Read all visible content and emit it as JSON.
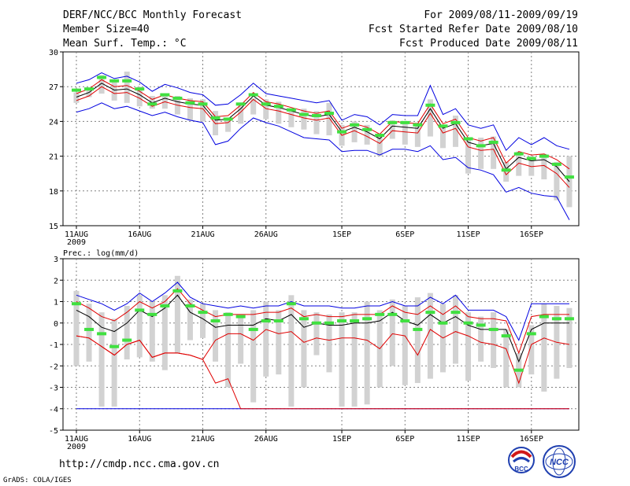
{
  "header": {
    "title": "DERF/NCC/BCC Monthly Forecast",
    "member_size": "Member Size=40",
    "variable": "Mean Surf. Temp.: °C",
    "period": "For 2009/08/11-2009/09/19",
    "fcst_started": "Fcst Started Refer Date 2009/08/10",
    "fcst_produced": "Fcst Produced Date 2009/08/11"
  },
  "footer": {
    "url": "http://cmdp.ncc.cma.gov.cn",
    "grads": "GrADS: COLA/IGES",
    "logo_bcc": "BCC",
    "logo_ncc": "NCC"
  },
  "colors": {
    "ensemble_mean": "#000000",
    "upper_lower": "#0000e0",
    "std_range": "#e00000",
    "box": "#d2d2d2",
    "observed_marker": "#40e040",
    "grid": "#808080"
  },
  "chart_data": [
    {
      "type": "line",
      "title": "Mean Surf. Temp.: °C",
      "ylim": [
        15,
        30
      ],
      "yticks": [
        "15",
        "18",
        "21",
        "24",
        "27",
        "30"
      ],
      "xticks": [
        "11AUG",
        "16AUG",
        "21AUG",
        "26AUG",
        "1SEP",
        "6SEP",
        "11SEP",
        "16SEP"
      ],
      "xtick_days": [
        0,
        5,
        10,
        15,
        21,
        26,
        31,
        36
      ],
      "year_label": "2009",
      "days": 40,
      "series": [
        {
          "name": "mean",
          "values": [
            26.1,
            26.5,
            27.3,
            26.7,
            26.8,
            26.3,
            25.6,
            26.0,
            25.7,
            25.5,
            25.4,
            24.1,
            24.2,
            25.1,
            26.2,
            25.4,
            25.2,
            24.9,
            24.6,
            24.4,
            24.6,
            23.1,
            23.5,
            23.1,
            22.5,
            23.6,
            23.5,
            23.4,
            25.1,
            23.4,
            23.8,
            22.2,
            21.9,
            22.1,
            19.9,
            20.9,
            20.6,
            20.7,
            20.1,
            18.8
          ]
        },
        {
          "name": "upper",
          "values": [
            27.3,
            27.6,
            28.2,
            27.7,
            27.9,
            27.4,
            26.6,
            27.2,
            26.9,
            26.5,
            26.3,
            25.4,
            25.5,
            26.3,
            27.3,
            26.4,
            26.2,
            26.0,
            25.8,
            25.6,
            25.8,
            24.1,
            24.6,
            24.4,
            23.7,
            24.6,
            24.5,
            24.5,
            27.1,
            24.6,
            25.1,
            23.7,
            23.4,
            23.7,
            21.5,
            22.6,
            22.0,
            22.6,
            21.9,
            21.6
          ]
        },
        {
          "name": "lower",
          "values": [
            24.8,
            25.1,
            25.6,
            25.1,
            25.3,
            24.9,
            24.5,
            24.8,
            24.4,
            24.1,
            23.9,
            22.0,
            22.3,
            23.4,
            24.3,
            23.9,
            23.6,
            23.1,
            22.6,
            22.5,
            22.4,
            21.4,
            21.5,
            21.5,
            21.1,
            21.6,
            21.6,
            21.4,
            21.9,
            20.7,
            20.9,
            20.0,
            19.8,
            19.4,
            17.9,
            18.3,
            17.8,
            17.6,
            17.5,
            15.5
          ]
        },
        {
          "name": "std_hi",
          "values": [
            26.4,
            26.8,
            27.6,
            27.0,
            27.1,
            26.6,
            25.9,
            26.3,
            26.0,
            25.8,
            25.7,
            24.4,
            24.5,
            25.4,
            26.5,
            25.7,
            25.5,
            25.2,
            24.9,
            24.7,
            24.9,
            23.4,
            23.8,
            23.5,
            22.9,
            24.0,
            23.9,
            23.8,
            25.5,
            23.8,
            24.2,
            22.6,
            22.3,
            22.6,
            20.4,
            21.4,
            21.1,
            21.2,
            20.7,
            19.9
          ]
        },
        {
          "name": "std_lo",
          "values": [
            25.8,
            26.2,
            27.0,
            26.4,
            26.5,
            26.0,
            25.3,
            25.7,
            25.4,
            25.2,
            25.1,
            23.8,
            23.9,
            24.8,
            25.9,
            25.1,
            24.9,
            24.6,
            24.3,
            24.1,
            24.3,
            22.8,
            23.2,
            22.7,
            22.1,
            23.2,
            23.1,
            23.0,
            24.7,
            23.0,
            23.4,
            21.8,
            21.5,
            21.6,
            19.4,
            20.4,
            20.1,
            20.2,
            19.5,
            18.3
          ]
        },
        {
          "name": "box_max",
          "values": [
            26.5,
            26.9,
            28.0,
            27.5,
            28.3,
            27.0,
            26.2,
            26.3,
            26.2,
            26.0,
            25.9,
            24.9,
            24.3,
            25.5,
            26.0,
            25.9,
            25.7,
            25.0,
            25.1,
            24.9,
            25.6,
            23.7,
            24.0,
            23.7,
            22.7,
            24.1,
            24.0,
            23.9,
            25.9,
            23.6,
            24.5,
            22.5,
            22.6,
            22.7,
            20.5,
            21.4,
            21.0,
            21.2,
            20.5,
            21.0
          ]
        },
        {
          "name": "box_min",
          "values": [
            25.6,
            26.1,
            26.4,
            25.8,
            25.6,
            25.3,
            25.1,
            25.1,
            24.6,
            24.1,
            24.0,
            22.8,
            23.1,
            23.8,
            24.6,
            24.2,
            23.8,
            23.5,
            23.3,
            22.9,
            22.8,
            21.9,
            22.2,
            22.0,
            21.0,
            22.5,
            22.0,
            21.8,
            22.7,
            21.7,
            21.8,
            19.5,
            19.9,
            19.9,
            18.8,
            19.3,
            19.3,
            19.0,
            17.2,
            16.6
          ]
        },
        {
          "name": "observed",
          "values": [
            26.7,
            26.8,
            27.8,
            27.5,
            27.5,
            26.8,
            25.5,
            26.3,
            26.0,
            25.6,
            25.5,
            24.3,
            24.2,
            25.5,
            26.3,
            25.5,
            25.3,
            25.0,
            24.6,
            24.5,
            24.7,
            23.1,
            23.7,
            23.3,
            22.8,
            23.9,
            23.9,
            23.7,
            25.4,
            23.6,
            23.9,
            22.5,
            21.9,
            22.2,
            19.8,
            21.2,
            20.8,
            21.0,
            20.3,
            19.2
          ]
        }
      ]
    },
    {
      "type": "line",
      "title": "Prec.: log(mm/d)",
      "ylim": [
        -5,
        3
      ],
      "yticks": [
        "-5",
        "-4",
        "-3",
        "-2",
        "-1",
        "0",
        "1",
        "2",
        "3"
      ],
      "xticks": [
        "11AUG",
        "16AUG",
        "21AUG",
        "26AUG",
        "1SEP",
        "6SEP",
        "11SEP",
        "16SEP"
      ],
      "xtick_days": [
        0,
        5,
        10,
        15,
        21,
        26,
        31,
        36
      ],
      "year_label": "2009",
      "days": 40,
      "series": [
        {
          "name": "mean",
          "values": [
            0.6,
            0.3,
            -0.2,
            -0.4,
            0.0,
            0.6,
            0.3,
            0.7,
            1.3,
            0.5,
            0.2,
            -0.2,
            -0.1,
            -0.1,
            -0.1,
            0.2,
            0.1,
            0.4,
            -0.2,
            0.0,
            -0.1,
            -0.1,
            0.0,
            0.0,
            0.1,
            0.5,
            0.1,
            -0.1,
            0.4,
            0.0,
            0.3,
            -0.1,
            -0.3,
            -0.3,
            -0.3,
            -1.8,
            -0.3,
            0.0,
            0.0,
            0.0
          ]
        },
        {
          "name": "upper",
          "values": [
            1.3,
            1.1,
            0.9,
            0.6,
            0.9,
            1.4,
            1.0,
            1.4,
            1.9,
            1.2,
            0.9,
            0.8,
            0.7,
            0.8,
            0.7,
            0.8,
            0.8,
            1.0,
            0.8,
            0.8,
            0.8,
            0.7,
            0.7,
            0.8,
            0.8,
            1.0,
            0.8,
            0.8,
            1.2,
            0.9,
            1.3,
            0.6,
            0.6,
            0.6,
            0.3,
            -0.8,
            0.9,
            0.9,
            0.9,
            0.9
          ]
        },
        {
          "name": "lower",
          "values": [
            -4,
            -4,
            -4,
            -4,
            -4,
            -4,
            -4,
            -4,
            -4,
            -4,
            -4,
            -4,
            -4,
            -4,
            -4,
            -4,
            -4,
            -4,
            -4,
            -4,
            -4,
            -4,
            -4,
            -4,
            -4,
            -4,
            -4,
            -4,
            -4,
            -4,
            -4,
            -4,
            -4,
            -4,
            -4,
            -4,
            -4,
            -4,
            -4,
            -4
          ]
        },
        {
          "name": "std_hi",
          "values": [
            1.0,
            0.7,
            0.3,
            0.1,
            0.5,
            1.0,
            0.7,
            1.0,
            1.6,
            0.9,
            0.6,
            0.3,
            0.4,
            0.4,
            0.4,
            0.5,
            0.5,
            0.7,
            0.3,
            0.4,
            0.3,
            0.3,
            0.4,
            0.4,
            0.4,
            0.8,
            0.5,
            0.4,
            0.8,
            0.4,
            0.8,
            0.3,
            0.2,
            0.2,
            0.1,
            -1.4,
            0.3,
            0.4,
            0.4,
            0.4
          ]
        },
        {
          "name": "std_lo",
          "values": [
            -0.6,
            -0.7,
            -1.1,
            -1.5,
            -1.0,
            -0.8,
            -1.6,
            -1.4,
            -1.4,
            -1.5,
            -1.7,
            -2.8,
            -2.6,
            -4.0,
            -4.0,
            -4.0,
            -4.0,
            -4.0,
            -4.0,
            -4.0,
            -4.0,
            -4.0,
            -4.0,
            -4.0,
            -4.0,
            -4.0,
            -4.0,
            -4.0,
            -4.0,
            -4.0,
            -4.0,
            -4.0,
            -4.0,
            -4.0,
            -4.0,
            -4.0,
            -4.0,
            -4.0,
            -4.0,
            -4.0
          ]
        },
        {
          "name": "std_lo_display",
          "values": [
            -0.6,
            -0.7,
            -1.1,
            -1.5,
            -1.0,
            -0.8,
            -1.6,
            -1.4,
            -1.4,
            -1.5,
            -1.7,
            -0.8,
            -0.5,
            -0.5,
            -0.8,
            -0.3,
            -0.5,
            -0.4,
            -0.9,
            -0.7,
            -0.8,
            -0.7,
            -0.7,
            -0.8,
            -1.2,
            -0.5,
            -0.6,
            -1.5,
            -0.3,
            -0.7,
            -0.4,
            -0.6,
            -0.9,
            -1.0,
            -1.2,
            -2.8,
            -1.0,
            -0.7,
            -0.9,
            -1.0
          ]
        },
        {
          "name": "box_max",
          "values": [
            1.5,
            0.9,
            0.5,
            0.2,
            0.8,
            1.3,
            1.0,
            1.3,
            2.2,
            1.1,
            0.9,
            0.6,
            0.5,
            0.3,
            0.6,
            1.0,
            0.6,
            1.3,
            0.6,
            0.5,
            0.4,
            0.5,
            0.5,
            1.0,
            0.6,
            1.1,
            0.8,
            1.2,
            1.4,
            0.9,
            1.3,
            0.5,
            0.3,
            0.5,
            -0.3,
            -1.4,
            -0.1,
            0.9,
            0.8,
            0.7
          ]
        },
        {
          "name": "box_min",
          "values": [
            -2.0,
            -1.8,
            -3.9,
            -3.9,
            -1.7,
            -1.6,
            -1.8,
            -2.2,
            -1.4,
            -0.8,
            -0.7,
            -1.8,
            -3.0,
            -1.9,
            -3.7,
            -2.5,
            -2.4,
            -3.9,
            -3.0,
            -1.5,
            -2.3,
            -3.9,
            -3.9,
            -3.8,
            -3.0,
            -2.0,
            -2.9,
            -2.8,
            -2.6,
            -2.3,
            -1.9,
            -2.7,
            -1.8,
            -2.1,
            -3.0,
            -3.0,
            -2.4,
            -3.2,
            -2.6,
            -2.1
          ]
        },
        {
          "name": "observed",
          "values": [
            0.9,
            -0.3,
            -0.5,
            -1.1,
            -0.8,
            0.6,
            0.4,
            0.8,
            1.5,
            0.8,
            0.5,
            0.1,
            0.4,
            0.3,
            -0.3,
            0.1,
            0.1,
            0.9,
            0.2,
            0.0,
            0.0,
            0.1,
            0.1,
            0.2,
            0.4,
            0.4,
            0.1,
            -0.3,
            0.5,
            0.0,
            0.5,
            0.0,
            -0.1,
            -0.3,
            -0.6,
            -2.2,
            -0.5,
            0.3,
            0.2,
            0.2
          ]
        }
      ]
    }
  ]
}
